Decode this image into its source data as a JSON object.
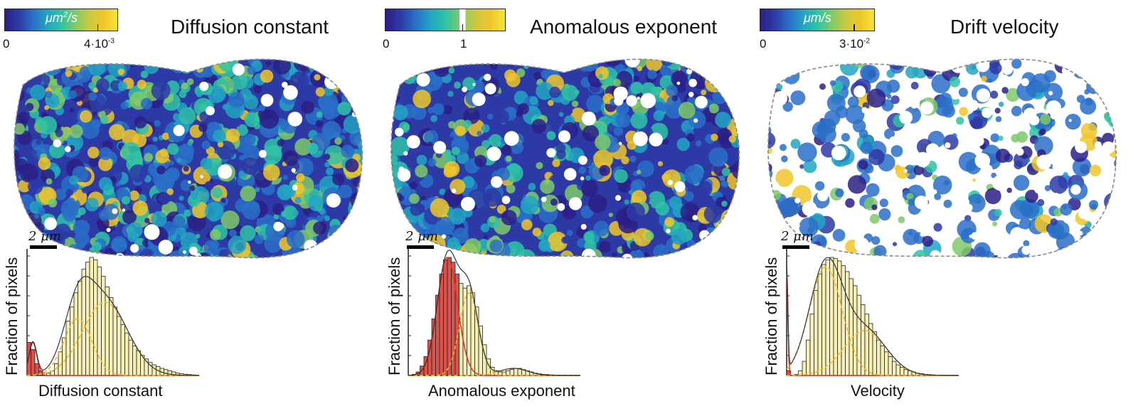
{
  "colors": {
    "viridis_stops": [
      "#2c1f86",
      "#2d3aa6",
      "#2a6fc8",
      "#22a5c2",
      "#2fc3a6",
      "#7ec96a",
      "#c9c940",
      "#f0c62a",
      "#f5e43a"
    ],
    "hist_fill": "#f6f0b8",
    "hist_edge": "#222222",
    "fit_red": "#e0352b",
    "fit_yellow": "#f2b81b",
    "fit_total": "#333333",
    "red_fill": "#d9534a",
    "outline": "#888888"
  },
  "panels": [
    {
      "id": "diffusion",
      "title": "Diffusion constant",
      "colorbar": {
        "unit_base": "μm",
        "unit_sup": "2",
        "unit_tail": "/s",
        "tick_min": "0",
        "tick_max_base": "4·10",
        "tick_max_sup": "-3",
        "marker_frac": 0.82
      },
      "scale_bar": "2 μm",
      "density": 0.95,
      "cell_seed": 11,
      "chart_data": {
        "type": "bar",
        "xlabel": "Diffusion constant",
        "ylabel": "Fraction of pixels",
        "bins": 44,
        "values": [
          0.28,
          0.22,
          0.1,
          0.04,
          0.02,
          0.02,
          0.04,
          0.1,
          0.2,
          0.32,
          0.46,
          0.58,
          0.7,
          0.8,
          0.9,
          0.96,
          1.0,
          0.98,
          0.92,
          0.84,
          0.75,
          0.66,
          0.58,
          0.5,
          0.43,
          0.36,
          0.3,
          0.25,
          0.21,
          0.17,
          0.14,
          0.11,
          0.09,
          0.075,
          0.06,
          0.05,
          0.04,
          0.03,
          0.02,
          0.015,
          0.01,
          0.008,
          0.005,
          0.003
        ],
        "red_bins": 4,
        "components": [
          {
            "name": "",
            "color": "red",
            "mu": 1.5,
            "sigma": 1.0,
            "amp": 0.28
          },
          {
            "name": "",
            "color": "yellow",
            "mu": 13,
            "sigma": 3.6,
            "amp": 0.48
          },
          {
            "name": "",
            "color": "yellow",
            "mu": 20,
            "sigma": 5.8,
            "amp": 0.62
          }
        ]
      }
    },
    {
      "id": "anomalous",
      "title": "Anomalous exponent",
      "colorbar": {
        "unit_base": "",
        "unit_sup": "",
        "unit_tail": "",
        "tick_min": "0",
        "tick_max_base": "",
        "tick_max_sup": "",
        "tick_mid": "1",
        "marker_frac": 0.64,
        "white_band": [
          0.62,
          0.67
        ]
      },
      "scale_bar": "2 μm",
      "density": 0.78,
      "cell_seed": 29,
      "chart_data": {
        "type": "bar",
        "xlabel": "Anomalous exponent",
        "ylabel": "Fraction of pixels",
        "bins": 44,
        "values": [
          0.0,
          0.01,
          0.03,
          0.08,
          0.16,
          0.3,
          0.48,
          0.68,
          0.86,
          0.98,
          1.0,
          0.96,
          0.86,
          0.78,
          0.74,
          0.76,
          0.7,
          0.58,
          0.42,
          0.26,
          0.14,
          0.07,
          0.04,
          0.03,
          0.03,
          0.04,
          0.05,
          0.06,
          0.06,
          0.05,
          0.04,
          0.03,
          0.02,
          0.015,
          0.01,
          0.008,
          0.005,
          0.004,
          0.003,
          0.002,
          0.0,
          0.0,
          0.0,
          0.0
        ],
        "red_bins": 13,
        "components": [
          {
            "name": "",
            "color": "red",
            "mu": 10,
            "sigma": 2.6,
            "amp": 1.0
          },
          {
            "name": "",
            "color": "yellow",
            "mu": 15.5,
            "sigma": 2.4,
            "amp": 0.7
          },
          {
            "name": "",
            "color": "yellow",
            "mu": 27,
            "sigma": 3.5,
            "amp": 0.06
          }
        ]
      }
    },
    {
      "id": "drift",
      "title": "Drift velocity",
      "colorbar": {
        "unit_base": "μm",
        "unit_sup": "",
        "unit_tail": "/s",
        "tick_min": "0",
        "tick_max_base": "3·10",
        "tick_max_sup": "-2",
        "marker_frac": 0.82
      },
      "scale_bar": "2 μm",
      "density": 0.42,
      "cell_seed": 47,
      "chart_data": {
        "type": "bar",
        "xlabel": "Velocity",
        "ylabel": "Fraction of pixels",
        "bins": 44,
        "values": [
          0.04,
          0.0,
          0.01,
          0.04,
          0.12,
          0.3,
          0.52,
          0.72,
          0.86,
          0.94,
          0.98,
          1.0,
          0.99,
          0.97,
          0.93,
          0.88,
          0.82,
          0.76,
          0.68,
          0.6,
          0.52,
          0.44,
          0.37,
          0.3,
          0.25,
          0.2,
          0.16,
          0.12,
          0.09,
          0.07,
          0.05,
          0.04,
          0.03,
          0.02,
          0.015,
          0.01,
          0.008,
          0.005,
          0.003,
          0.002,
          0.0,
          0.0,
          0.0,
          0.0
        ],
        "red_bins": 1,
        "components": [
          {
            "name": "",
            "color": "red",
            "mu": 0,
            "sigma": 0.3,
            "amp": 0.9
          },
          {
            "name": "",
            "color": "yellow",
            "mu": 10,
            "sigma": 4.2,
            "amp": 0.92
          },
          {
            "name": "",
            "color": "yellow",
            "mu": 20,
            "sigma": 5.5,
            "amp": 0.38
          }
        ]
      }
    }
  ]
}
